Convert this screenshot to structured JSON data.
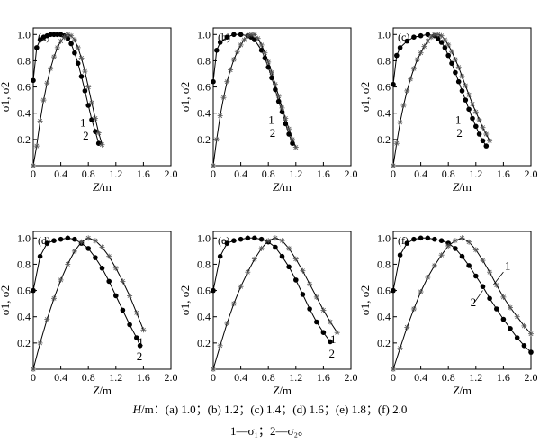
{
  "figure": {
    "caption_h_symbol": "H",
    "caption_h_rest": "/m：(a) 1.0；(b) 1.2；(c) 1.4；(d) 1.6；(e) 1.8；(f) 2.0",
    "caption_legend": "1—σ₁；2—σ₂。"
  },
  "chart_data": [
    {
      "panel": "(a)",
      "type": "line",
      "xlabel": "Z/m",
      "ylabel": "σ1, σ2",
      "xlim": [
        0,
        2.0
      ],
      "ylim": [
        0,
        1.05
      ],
      "xticks": [
        "0",
        "0.4",
        "0.8",
        "1.2",
        "1.6",
        "2.0"
      ],
      "yticks": [
        "0.2",
        "0.4",
        "0.6",
        "0.8",
        "1.0"
      ],
      "grid": false,
      "series": [
        {
          "name": "1",
          "marker": "dot",
          "x": [
            0,
            0.05,
            0.1,
            0.15,
            0.2,
            0.25,
            0.3,
            0.35,
            0.4,
            0.45,
            0.5,
            0.55,
            0.6,
            0.65,
            0.7,
            0.75,
            0.8,
            0.85,
            0.9,
            0.95
          ],
          "y": [
            0.65,
            0.9,
            0.96,
            0.98,
            0.99,
            1.0,
            1.0,
            1.0,
            1.0,
            0.99,
            0.97,
            0.93,
            0.86,
            0.78,
            0.68,
            0.57,
            0.46,
            0.35,
            0.26,
            0.17
          ]
        },
        {
          "name": "2",
          "marker": "star",
          "x": [
            0,
            0.05,
            0.1,
            0.15,
            0.2,
            0.25,
            0.3,
            0.35,
            0.4,
            0.45,
            0.5,
            0.55,
            0.6,
            0.65,
            0.7,
            0.75,
            0.8,
            0.85,
            0.9,
            0.95,
            1.0
          ],
          "y": [
            0.0,
            0.15,
            0.34,
            0.5,
            0.63,
            0.74,
            0.83,
            0.9,
            0.95,
            0.98,
            1.0,
            0.99,
            0.96,
            0.9,
            0.82,
            0.72,
            0.6,
            0.48,
            0.36,
            0.25,
            0.16
          ]
        }
      ],
      "annotations": [
        "1",
        "2"
      ]
    },
    {
      "panel": "(b)",
      "type": "line",
      "xlabel": "Z/m",
      "ylabel": "σ1, σ2",
      "xlim": [
        0,
        2.0
      ],
      "ylim": [
        0,
        1.05
      ],
      "xticks": [
        "0",
        "0.4",
        "0.8",
        "1.2",
        "1.6",
        "2.0"
      ],
      "yticks": [
        "0.2",
        "0.4",
        "0.6",
        "0.8",
        "1.0"
      ],
      "grid": false,
      "series": [
        {
          "name": "1",
          "marker": "dot",
          "x": [
            0,
            0.05,
            0.1,
            0.2,
            0.3,
            0.4,
            0.5,
            0.55,
            0.6,
            0.7,
            0.75,
            0.8,
            0.85,
            0.9,
            0.95,
            1.0,
            1.05,
            1.1,
            1.15
          ],
          "y": [
            0.64,
            0.88,
            0.94,
            0.98,
            1.0,
            1.0,
            0.99,
            0.98,
            0.96,
            0.88,
            0.82,
            0.75,
            0.67,
            0.58,
            0.49,
            0.41,
            0.32,
            0.24,
            0.17
          ]
        },
        {
          "name": "2",
          "marker": "star",
          "x": [
            0,
            0.05,
            0.1,
            0.15,
            0.2,
            0.25,
            0.3,
            0.35,
            0.4,
            0.45,
            0.5,
            0.55,
            0.6,
            0.65,
            0.7,
            0.75,
            0.8,
            0.85,
            0.9,
            0.95,
            1.0,
            1.05,
            1.1,
            1.15,
            1.2
          ],
          "y": [
            0.0,
            0.2,
            0.38,
            0.52,
            0.64,
            0.73,
            0.81,
            0.87,
            0.92,
            0.96,
            0.99,
            1.0,
            1.0,
            0.97,
            0.92,
            0.86,
            0.79,
            0.71,
            0.62,
            0.53,
            0.44,
            0.36,
            0.28,
            0.2,
            0.14
          ]
        }
      ],
      "annotations": [
        "1",
        "2"
      ]
    },
    {
      "panel": "(c)",
      "type": "line",
      "xlabel": "Z/m",
      "ylabel": "σ1, σ2",
      "xlim": [
        0,
        2.0
      ],
      "ylim": [
        0,
        1.05
      ],
      "xticks": [
        "0",
        "0.4",
        "0.8",
        "1.2",
        "1.6",
        "2.0"
      ],
      "yticks": [
        "0.2",
        "0.4",
        "0.6",
        "0.8",
        "1.0"
      ],
      "grid": false,
      "series": [
        {
          "name": "1",
          "marker": "dot",
          "x": [
            0,
            0.05,
            0.1,
            0.2,
            0.3,
            0.4,
            0.5,
            0.6,
            0.65,
            0.7,
            0.75,
            0.8,
            0.85,
            0.9,
            0.95,
            1.0,
            1.05,
            1.1,
            1.15,
            1.2,
            1.25,
            1.3,
            1.35
          ],
          "y": [
            0.62,
            0.84,
            0.9,
            0.95,
            0.98,
            0.99,
            1.0,
            0.99,
            0.97,
            0.94,
            0.9,
            0.84,
            0.78,
            0.71,
            0.64,
            0.57,
            0.5,
            0.43,
            0.36,
            0.3,
            0.24,
            0.19,
            0.15
          ]
        },
        {
          "name": "2",
          "marker": "star",
          "x": [
            0,
            0.05,
            0.1,
            0.15,
            0.2,
            0.25,
            0.3,
            0.35,
            0.4,
            0.45,
            0.5,
            0.55,
            0.6,
            0.65,
            0.7,
            0.75,
            0.8,
            0.85,
            0.9,
            0.95,
            1.0,
            1.05,
            1.1,
            1.15,
            1.2,
            1.25,
            1.3,
            1.35,
            1.4
          ],
          "y": [
            0.0,
            0.17,
            0.33,
            0.46,
            0.57,
            0.66,
            0.74,
            0.81,
            0.86,
            0.91,
            0.95,
            0.98,
            1.0,
            1.0,
            0.99,
            0.96,
            0.92,
            0.87,
            0.81,
            0.75,
            0.68,
            0.61,
            0.54,
            0.47,
            0.41,
            0.35,
            0.29,
            0.24,
            0.19
          ]
        }
      ],
      "annotations": [
        "1",
        "2"
      ]
    },
    {
      "panel": "(d)",
      "type": "line",
      "xlabel": "Z/m",
      "ylabel": "σ1, σ2",
      "xlim": [
        0,
        2.0
      ],
      "ylim": [
        0,
        1.05
      ],
      "xticks": [
        "0",
        "0.4",
        "0.8",
        "1.2",
        "1.6",
        "2.0"
      ],
      "yticks": [
        "0.2",
        "0.4",
        "0.6",
        "0.8",
        "1.0"
      ],
      "grid": false,
      "series": [
        {
          "name": "1",
          "marker": "dot",
          "x": [
            0,
            0.1,
            0.2,
            0.3,
            0.4,
            0.5,
            0.6,
            0.7,
            0.8,
            0.9,
            1.0,
            1.1,
            1.2,
            1.3,
            1.4,
            1.5,
            1.55
          ],
          "y": [
            0.6,
            0.86,
            0.96,
            0.98,
            0.99,
            1.0,
            0.99,
            0.96,
            0.92,
            0.85,
            0.77,
            0.67,
            0.56,
            0.45,
            0.34,
            0.24,
            0.18
          ]
        },
        {
          "name": "2",
          "marker": "star",
          "x": [
            0,
            0.1,
            0.2,
            0.3,
            0.4,
            0.5,
            0.6,
            0.7,
            0.8,
            0.9,
            1.0,
            1.1,
            1.2,
            1.3,
            1.4,
            1.5,
            1.6
          ],
          "y": [
            0.0,
            0.2,
            0.38,
            0.54,
            0.68,
            0.8,
            0.9,
            0.97,
            1.0,
            0.98,
            0.93,
            0.86,
            0.77,
            0.67,
            0.56,
            0.43,
            0.3
          ]
        }
      ],
      "annotations": [
        "1",
        "2"
      ]
    },
    {
      "panel": "(e)",
      "type": "line",
      "xlabel": "Z/m",
      "ylabel": "σ1, σ2",
      "xlim": [
        0,
        2.0
      ],
      "ylim": [
        0,
        1.05
      ],
      "xticks": [
        "0",
        "0.4",
        "0.8",
        "1.2",
        "1.6",
        "2.0"
      ],
      "yticks": [
        "0.2",
        "0.4",
        "0.6",
        "0.8",
        "1.0"
      ],
      "grid": false,
      "series": [
        {
          "name": "1",
          "marker": "dot",
          "x": [
            0,
            0.1,
            0.2,
            0.3,
            0.4,
            0.5,
            0.6,
            0.7,
            0.8,
            0.9,
            1.0,
            1.1,
            1.2,
            1.3,
            1.4,
            1.5,
            1.6,
            1.7
          ],
          "y": [
            0.6,
            0.86,
            0.96,
            0.98,
            0.99,
            1.0,
            1.0,
            0.99,
            0.97,
            0.93,
            0.86,
            0.78,
            0.68,
            0.57,
            0.46,
            0.36,
            0.28,
            0.21
          ]
        },
        {
          "name": "2",
          "marker": "star",
          "x": [
            0,
            0.1,
            0.2,
            0.3,
            0.4,
            0.5,
            0.6,
            0.7,
            0.8,
            0.9,
            1.0,
            1.1,
            1.2,
            1.3,
            1.4,
            1.5,
            1.6,
            1.7,
            1.8
          ],
          "y": [
            0.0,
            0.18,
            0.35,
            0.5,
            0.63,
            0.74,
            0.84,
            0.92,
            0.98,
            1.0,
            0.98,
            0.92,
            0.84,
            0.75,
            0.65,
            0.55,
            0.45,
            0.36,
            0.28
          ]
        }
      ],
      "annotations": [
        "1",
        "2"
      ]
    },
    {
      "panel": "(f)",
      "type": "line",
      "xlabel": "Z/m",
      "ylabel": "σ1, σ2",
      "xlim": [
        0,
        2.0
      ],
      "ylim": [
        0,
        1.05
      ],
      "xticks": [
        "0",
        "0.4",
        "0.8",
        "1.2",
        "1.6",
        "2.0"
      ],
      "yticks": [
        "0.2",
        "0.4",
        "0.6",
        "0.8",
        "1.0"
      ],
      "grid": false,
      "series": [
        {
          "name": "1",
          "marker": "dot",
          "x": [
            0,
            0.1,
            0.2,
            0.3,
            0.4,
            0.5,
            0.6,
            0.7,
            0.8,
            0.9,
            1.0,
            1.1,
            1.2,
            1.3,
            1.4,
            1.5,
            1.6,
            1.7,
            1.8,
            1.9,
            2.0
          ],
          "y": [
            0.6,
            0.87,
            0.96,
            0.99,
            1.0,
            1.0,
            0.99,
            0.98,
            0.96,
            0.92,
            0.86,
            0.79,
            0.71,
            0.63,
            0.54,
            0.46,
            0.38,
            0.31,
            0.24,
            0.18,
            0.13
          ]
        },
        {
          "name": "2",
          "marker": "star",
          "x": [
            0,
            0.1,
            0.2,
            0.3,
            0.4,
            0.5,
            0.6,
            0.7,
            0.8,
            0.9,
            1.0,
            1.1,
            1.2,
            1.3,
            1.4,
            1.5,
            1.6,
            1.7,
            1.8,
            1.9,
            2.0
          ],
          "y": [
            0.0,
            0.16,
            0.32,
            0.46,
            0.59,
            0.7,
            0.79,
            0.87,
            0.94,
            0.98,
            1.0,
            0.97,
            0.91,
            0.83,
            0.74,
            0.64,
            0.55,
            0.47,
            0.4,
            0.33,
            0.27
          ]
        }
      ],
      "annotations": [
        "1",
        "2"
      ]
    }
  ]
}
